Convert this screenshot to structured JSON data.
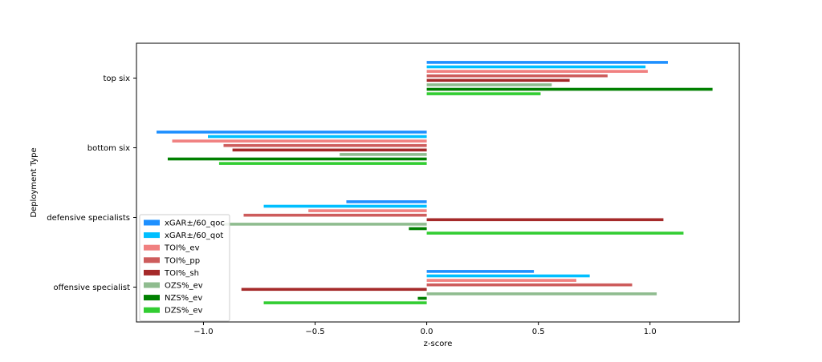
{
  "chart_data": {
    "type": "bar",
    "orientation": "horizontal",
    "categories": [
      "top six",
      "bottom six",
      "defensive specialists",
      "offensive specialist"
    ],
    "xlabel": "z-score",
    "ylabel": "Deployment Type",
    "xlim": [
      -1.3,
      1.4
    ],
    "xticks": [
      -1.0,
      -0.5,
      0.0,
      0.5,
      1.0
    ],
    "xtick_labels": [
      "−1.0",
      "−0.5",
      "0.0",
      "0.5",
      "1.0"
    ],
    "grid": false,
    "legend_position": "lower-left",
    "series": [
      {
        "name": "xGAR±/60_qoc",
        "color": "#1e90ff",
        "values": [
          1.08,
          -1.21,
          -0.36,
          0.48
        ]
      },
      {
        "name": "xGAR±/60_qot",
        "color": "#00bfff",
        "values": [
          0.98,
          -0.98,
          -0.73,
          0.73
        ]
      },
      {
        "name": "TOI%_ev",
        "color": "#f08080",
        "values": [
          0.99,
          -1.14,
          -0.53,
          0.67
        ]
      },
      {
        "name": "TOI%_pp",
        "color": "#cd5c5c",
        "values": [
          0.81,
          -0.91,
          -0.82,
          0.92
        ]
      },
      {
        "name": "TOI%_sh",
        "color": "#a52a2a",
        "values": [
          0.64,
          -0.87,
          1.06,
          -0.83
        ]
      },
      {
        "name": "OZS%_ev",
        "color": "#8fbc8f",
        "values": [
          0.56,
          -0.39,
          -0.91,
          1.03
        ]
      },
      {
        "name": "NZS%_ev",
        "color": "#008000",
        "values": [
          1.28,
          -1.16,
          -0.08,
          -0.04
        ]
      },
      {
        "name": "DZS%_ev",
        "color": "#32cd32",
        "values": [
          0.51,
          -0.93,
          1.15,
          -0.73
        ]
      }
    ]
  }
}
